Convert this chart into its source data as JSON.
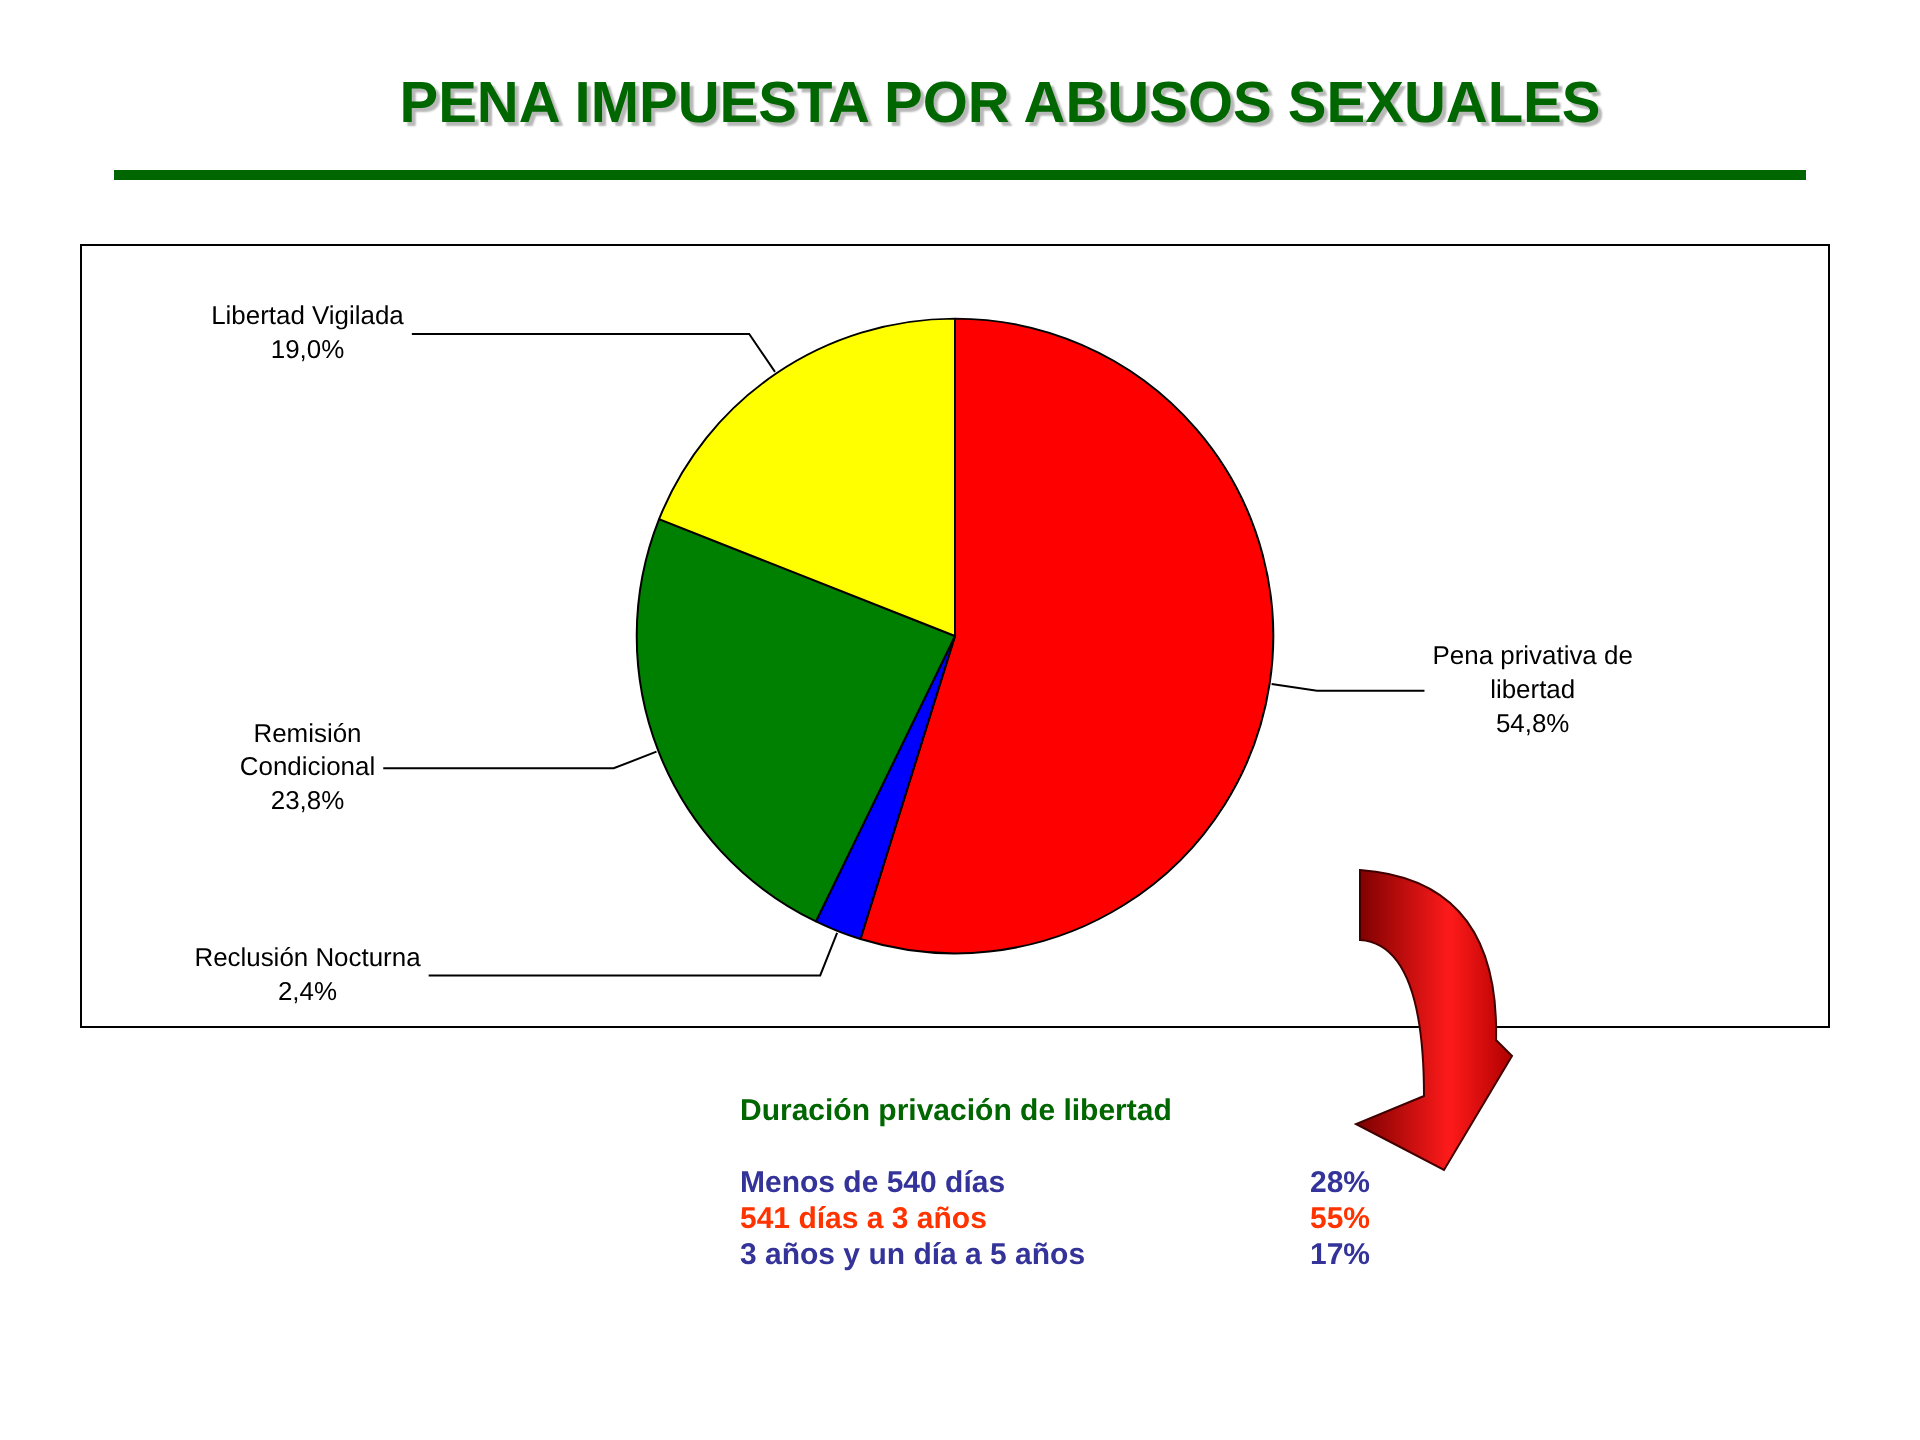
{
  "chart_data": [
    {
      "type": "pie",
      "title": "PENA IMPUESTA POR ABUSOS SEXUALES",
      "categories": [
        "Pena privativa de libertad",
        "Reclusión Nocturna",
        "Remisión Condicional",
        "Libertad Vigilada"
      ],
      "values": [
        54.8,
        2.4,
        23.8,
        19.0
      ],
      "value_labels": [
        "54,8%",
        "2,4%",
        "23,8%",
        "19,0%"
      ],
      "colors": [
        "#ff0000",
        "#0000ff",
        "#008000",
        "#ffff00"
      ]
    },
    {
      "type": "other",
      "title": "Duración privación de libertad",
      "categories": [
        "Menos de 540 días",
        "541 días a 3 años",
        "3 años y un día a 5 años"
      ],
      "value_labels": [
        "28%",
        "55%",
        "17%"
      ],
      "colors": [
        "#333399",
        "#ff3300",
        "#333399"
      ]
    }
  ]
}
